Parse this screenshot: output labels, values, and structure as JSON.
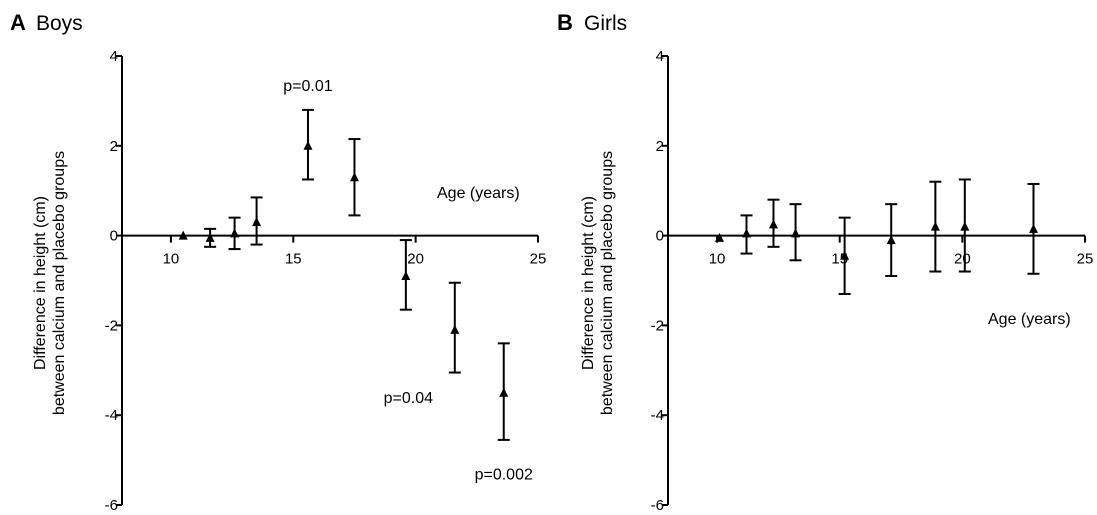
{
  "chart_data": [
    {
      "type": "scatter",
      "panel_letter": "A",
      "title": "Boys",
      "xlabel": "Age (years)",
      "ylabel_line1": "Difference in height (cm)",
      "ylabel_line2": "between calcium and placebo groups",
      "xlim": [
        8,
        25
      ],
      "ylim": [
        -6,
        4
      ],
      "xticks": [
        "10",
        "15",
        "20",
        "25"
      ],
      "yticks": [
        "4",
        "2",
        "0",
        "-2",
        "-4",
        "-6"
      ],
      "grid": false,
      "points": [
        {
          "x": 10.5,
          "y": 0.0,
          "ylow": 0.0,
          "yhigh": 0.0
        },
        {
          "x": 11.6,
          "y": -0.05,
          "ylow": -0.25,
          "yhigh": 0.15
        },
        {
          "x": 12.6,
          "y": 0.05,
          "ylow": -0.3,
          "yhigh": 0.4
        },
        {
          "x": 13.5,
          "y": 0.3,
          "ylow": -0.2,
          "yhigh": 0.85
        },
        {
          "x": 15.6,
          "y": 2.0,
          "ylow": 1.25,
          "yhigh": 2.8
        },
        {
          "x": 17.5,
          "y": 1.3,
          "ylow": 0.45,
          "yhigh": 2.15
        },
        {
          "x": 19.6,
          "y": -0.9,
          "ylow": -1.65,
          "yhigh": -0.1
        },
        {
          "x": 21.6,
          "y": -2.1,
          "ylow": -3.05,
          "yhigh": -1.05
        },
        {
          "x": 23.6,
          "y": -3.5,
          "ylow": -4.55,
          "yhigh": -2.4
        }
      ],
      "annotations": [
        {
          "text": "p=0.01",
          "x": 15.6,
          "y": 3.35
        },
        {
          "text": "p=0.04",
          "x": 19.7,
          "y": -3.6
        },
        {
          "text": "p=0.002",
          "x": 23.6,
          "y": -5.3
        }
      ]
    },
    {
      "type": "scatter",
      "panel_letter": "B",
      "title": "Girls",
      "xlabel": "Age (years)",
      "ylabel_line1": "Difference in height (cm)",
      "ylabel_line2": "between calcium and placebo groups",
      "xlim": [
        8,
        25
      ],
      "ylim": [
        -6,
        4
      ],
      "xticks": [
        "10",
        "15",
        "20",
        "25"
      ],
      "yticks": [
        "4",
        "2",
        "0",
        "-2",
        "-4",
        "-6"
      ],
      "grid": false,
      "points": [
        {
          "x": 10.1,
          "y": -0.05,
          "ylow": -0.05,
          "yhigh": -0.05
        },
        {
          "x": 11.2,
          "y": 0.05,
          "ylow": -0.4,
          "yhigh": 0.45
        },
        {
          "x": 12.3,
          "y": 0.25,
          "ylow": -0.25,
          "yhigh": 0.8
        },
        {
          "x": 13.2,
          "y": 0.05,
          "ylow": -0.55,
          "yhigh": 0.7
        },
        {
          "x": 15.2,
          "y": -0.45,
          "ylow": -1.3,
          "yhigh": 0.4
        },
        {
          "x": 17.1,
          "y": -0.1,
          "ylow": -0.9,
          "yhigh": 0.7
        },
        {
          "x": 18.9,
          "y": 0.2,
          "ylow": -0.8,
          "yhigh": 1.2
        },
        {
          "x": 20.1,
          "y": 0.2,
          "ylow": -0.8,
          "yhigh": 1.25
        },
        {
          "x": 22.9,
          "y": 0.15,
          "ylow": -0.85,
          "yhigh": 1.15
        }
      ],
      "annotations": []
    }
  ]
}
